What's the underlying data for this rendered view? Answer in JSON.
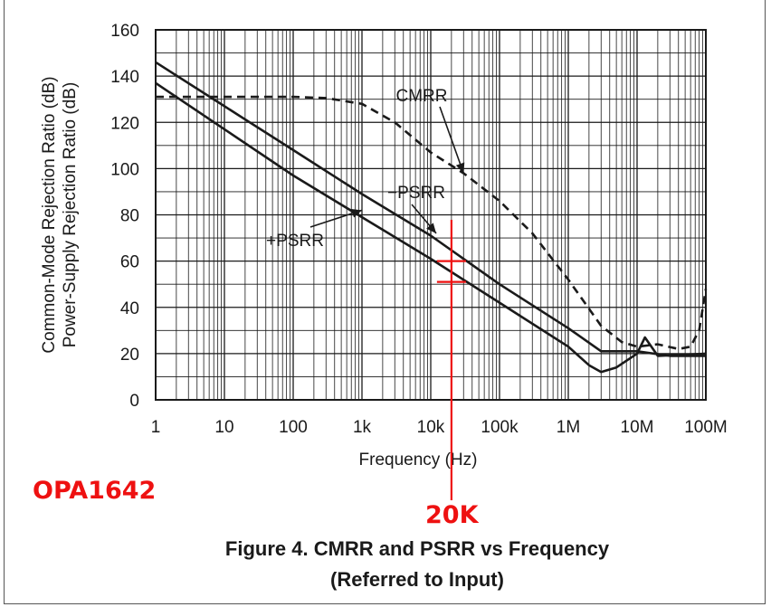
{
  "chart_data": {
    "type": "line",
    "xlabel": "Frequency (Hz)",
    "ylabel": [
      "Common-Mode Rejection Ratio (dB)",
      "Power-Supply Rejection Ratio (dB)"
    ],
    "xscale": "log",
    "xlim": [
      1,
      100000000
    ],
    "ylim": [
      0,
      160
    ],
    "grid": true,
    "x_ticks": [
      1,
      10,
      100,
      1000,
      10000,
      100000,
      1000000,
      10000000,
      100000000
    ],
    "x_tick_labels": [
      "1",
      "10",
      "100",
      "1k",
      "10k",
      "100k",
      "1M",
      "10M",
      "100M"
    ],
    "y_ticks": [
      0,
      20,
      40,
      60,
      80,
      100,
      120,
      140,
      160
    ],
    "y_tick_labels": [
      "0",
      "20",
      "40",
      "60",
      "80",
      "100",
      "120",
      "140",
      "160"
    ],
    "series": [
      {
        "name": "CMRR",
        "style": "dashed",
        "color": "#1a1a1a",
        "x": [
          1,
          10,
          100,
          300,
          1000,
          3000,
          10000,
          30000,
          100000,
          300000,
          1000000,
          3000000,
          6000000,
          10000000,
          20000000,
          40000000,
          60000000,
          80000000,
          100000000
        ],
        "y": [
          131,
          131,
          131,
          130.5,
          128,
          120,
          107,
          98,
          86,
          72,
          52,
          32,
          25,
          23,
          24,
          22,
          23,
          30,
          48
        ]
      },
      {
        "name": "−PSRR",
        "style": "solid",
        "color": "#1a1a1a",
        "x": [
          1,
          10,
          100,
          1000,
          10000,
          100000,
          1000000,
          3000000,
          10000000,
          30000000,
          100000000
        ],
        "y": [
          146,
          127,
          108,
          89,
          71,
          50,
          31,
          21,
          21,
          19,
          19
        ]
      },
      {
        "name": "+PSRR",
        "style": "solid",
        "color": "#1a1a1a",
        "x": [
          1,
          10,
          100,
          1000,
          10000,
          100000,
          1000000,
          2000000,
          3000000,
          5000000,
          10000000,
          13000000,
          20000000,
          100000000
        ],
        "y": [
          137,
          117,
          97,
          79,
          61,
          42,
          23,
          15,
          12,
          14,
          20,
          27,
          19,
          20
        ]
      }
    ],
    "annotations": [
      {
        "text": "CMRR",
        "points_to": {
          "x": 30000,
          "y": 98
        }
      },
      {
        "text": "−PSRR",
        "points_to": {
          "x": 12000,
          "y": 72
        }
      },
      {
        "text": "+PSRR",
        "points_to": {
          "x": 1000,
          "y": 82
        }
      }
    ],
    "marker": {
      "color": "#ee1111",
      "x": 20000,
      "label": "20K",
      "ticks_y": [
        60,
        51
      ]
    }
  },
  "device_label": "OPA1642",
  "caption": {
    "line1": "Figure 4. CMRR and PSRR vs Frequency",
    "line2": "(Referred to Input)"
  }
}
